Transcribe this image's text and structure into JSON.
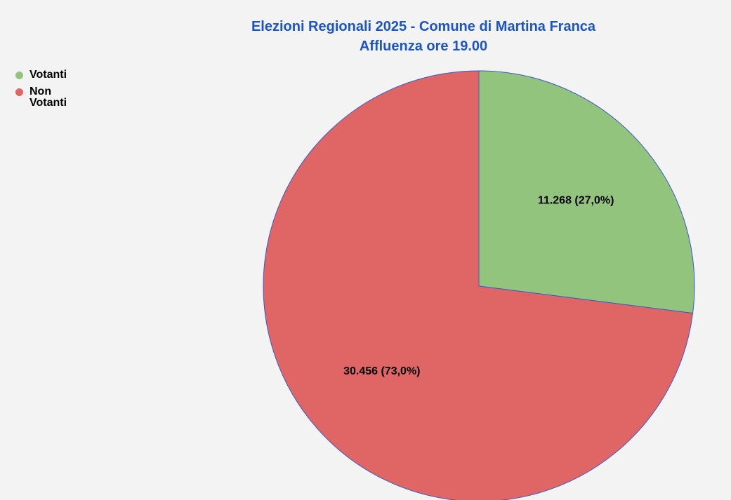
{
  "title": "Elezioni Regionali 2025 - Comune di Martina Franca",
  "subtitle": "Affluenza ore 19.00",
  "colors": {
    "title": "#1a55c9",
    "votanti": "#93c47d",
    "non_votanti": "#e06666",
    "slice_border": "#3a5bc7",
    "background": "#f3f3f3"
  },
  "chart_data": {
    "type": "pie",
    "title": "Elezioni Regionali 2025 - Comune di Martina Franca",
    "subtitle": "Affluenza ore 19.00",
    "legend_position": "top-left",
    "slices": [
      {
        "name": "Votanti",
        "value": 11268,
        "percent": 27.0,
        "label": "11.268 (27,0%)",
        "color": "#93c47d"
      },
      {
        "name": "Non Votanti",
        "value": 30456,
        "percent": 73.0,
        "label": "30.456 (73,0%)",
        "color": "#e06666"
      }
    ]
  },
  "legend": [
    {
      "label": "Votanti",
      "color": "#93c47d"
    },
    {
      "label": "Non Votanti",
      "color": "#e06666"
    }
  ]
}
